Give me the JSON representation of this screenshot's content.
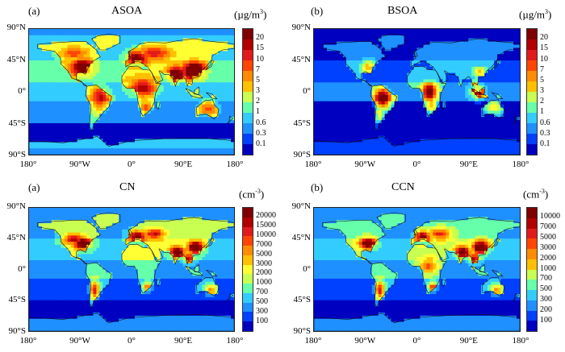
{
  "panels": [
    {
      "label": "(a)",
      "title": "ASOA",
      "unit_base": "(µg/m",
      "unit_sup": "3",
      "unit_end": ")",
      "colorbar_ticks": [
        "20",
        "15",
        "10",
        "7",
        "5",
        "3",
        "2",
        "1",
        "0.6",
        "0.3",
        "0.1"
      ],
      "lat_labels": [
        "90°N",
        "45°N",
        "0°",
        "45°S",
        "90°S"
      ],
      "lon_labels": [
        "180°",
        "90°W",
        "0°",
        "90°E",
        "180°"
      ]
    },
    {
      "label": "(b)",
      "title": "BSOA",
      "unit_base": "(µg/m",
      "unit_sup": "3",
      "unit_end": ")",
      "colorbar_ticks": [
        "20",
        "15",
        "10",
        "7",
        "5",
        "3",
        "2",
        "1",
        "0.6",
        "0.3",
        "0.1"
      ],
      "lat_labels": [
        "90°N",
        "45°N",
        "0°",
        "45°S",
        "90°S"
      ],
      "lon_labels": [
        "180°",
        "90°W",
        "0°",
        "90°E",
        "180°"
      ]
    },
    {
      "label": "(a)",
      "title": "CN",
      "unit_base": "(cm",
      "unit_sup": "-3",
      "unit_end": ")",
      "colorbar_ticks": [
        "20000",
        "15000",
        "10000",
        "7000",
        "5000",
        "3000",
        "2000",
        "1000",
        "700",
        "500",
        "300",
        "100"
      ],
      "lat_labels": [
        "90°N",
        "45°N",
        "0°",
        "45°S",
        "90°S"
      ],
      "lon_labels": [
        "180°",
        "90°W",
        "0°",
        "90°E",
        "180°"
      ]
    },
    {
      "label": "(b)",
      "title": "CCN",
      "unit_base": "(cm",
      "unit_sup": "-3",
      "unit_end": ")",
      "colorbar_ticks": [
        "10000",
        "7000",
        "5000",
        "3000",
        "2000",
        "1000",
        "700",
        "500",
        "300",
        "200",
        "100"
      ],
      "lat_labels": [
        "90°N",
        "45°N",
        "0°",
        "45°S",
        "90°S"
      ],
      "lon_labels": [
        "180°",
        "90°W",
        "0°",
        "90°E",
        "180°"
      ]
    }
  ],
  "colors": {
    "scale": [
      "#7f0000",
      "#b30000",
      "#e31a1c",
      "#ff4500",
      "#ff8c00",
      "#ffc000",
      "#ffff33",
      "#c8ff50",
      "#66ffaa",
      "#33ccff",
      "#1e90ff",
      "#0040ff",
      "#0000c0"
    ]
  }
}
